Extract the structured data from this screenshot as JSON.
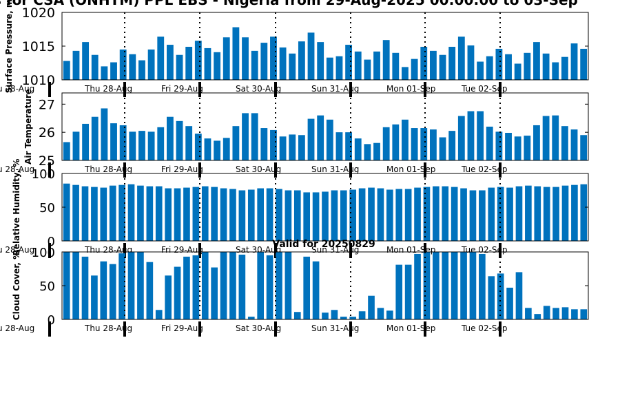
{
  "page": {
    "title": "s for CSA (ONHTM) PPL EBS  - Nigeria from 29-Aug-2025 00:00:00 to 03-Sep",
    "valid_label": "Valid for 20250829"
  },
  "colors": {
    "bar": "#0072BD",
    "axis": "#000000",
    "divider": "#000000"
  },
  "day_labels": [
    "u 28-Aug",
    "Thu 28-Aug",
    "Fri 29-Aug",
    "Sat 30-Aug",
    "Sun 31-Aug",
    "Mon 01-Sep",
    "Tue 02-Sep"
  ],
  "chart_data": [
    {
      "type": "bar",
      "ylabel": "Surface Pressure, m",
      "ylim": [
        1010,
        1020
      ],
      "yticks": [
        "1010",
        "1015",
        "1020"
      ],
      "ytick_values": [
        1010,
        1015,
        1020
      ],
      "values": [
        1012.8,
        1014.3,
        1015.6,
        1013.7,
        1012.0,
        1012.6,
        1014.5,
        1013.8,
        1012.9,
        1014.5,
        1016.4,
        1015.2,
        1013.7,
        1014.9,
        1015.8,
        1014.7,
        1014.1,
        1016.3,
        1017.8,
        1016.3,
        1014.3,
        1015.5,
        1016.4,
        1014.8,
        1013.9,
        1015.7,
        1017.0,
        1015.6,
        1013.3,
        1013.5,
        1015.2,
        1014.2,
        1013.0,
        1014.2,
        1015.9,
        1014.0,
        1011.9,
        1013.1,
        1014.9,
        1014.3,
        1013.7,
        1014.9,
        1016.4,
        1015.1,
        1012.7,
        1013.5,
        1014.6,
        1013.8,
        1012.4,
        1014.0,
        1015.6,
        1013.9,
        1012.6,
        1013.4,
        1015.4,
        1014.6
      ]
    },
    {
      "type": "bar",
      "ylabel": "Air Temperature",
      "ylim": [
        25,
        27.4
      ],
      "yticks": [
        "25",
        "26",
        "27"
      ],
      "ytick_values": [
        25,
        26,
        27
      ],
      "values": [
        25.65,
        26.02,
        26.3,
        26.55,
        26.85,
        26.32,
        26.25,
        26.02,
        26.05,
        26.02,
        26.18,
        26.55,
        26.4,
        26.22,
        25.95,
        25.78,
        25.7,
        25.8,
        26.22,
        26.68,
        26.68,
        26.15,
        26.08,
        25.85,
        25.92,
        25.9,
        26.48,
        26.6,
        26.45,
        26.0,
        26.0,
        25.78,
        25.58,
        25.62,
        26.18,
        26.28,
        26.45,
        26.15,
        26.15,
        26.1,
        25.82,
        26.05,
        26.58,
        26.75,
        26.75,
        26.2,
        26.02,
        25.98,
        25.85,
        25.88,
        26.25,
        26.58,
        26.6,
        26.22,
        26.1,
        25.9
      ]
    },
    {
      "type": "bar",
      "ylabel": "Relative Humidity, %",
      "ylim": [
        0,
        100
      ],
      "yticks": [
        "0",
        "50",
        "100"
      ],
      "ytick_values": [
        0,
        50,
        100
      ],
      "values": [
        85,
        83,
        81,
        80,
        79,
        82,
        83,
        84,
        82,
        81,
        81,
        78,
        78,
        79,
        80,
        81,
        80,
        78,
        77,
        75,
        76,
        78,
        78,
        77,
        75,
        75,
        72,
        72,
        73,
        75,
        75,
        76,
        78,
        79,
        78,
        76,
        77,
        77,
        79,
        80,
        81,
        81,
        80,
        78,
        75,
        75,
        79,
        80,
        79,
        81,
        82,
        81,
        80,
        80,
        82,
        83,
        84
      ]
    },
    {
      "type": "bar",
      "ylabel": "Cloud Cover, %",
      "ylim": [
        0,
        100
      ],
      "yticks": [
        "0",
        "50",
        "100"
      ],
      "ytick_values": [
        0,
        50,
        100
      ],
      "values": [
        100,
        100,
        93,
        65,
        86,
        82,
        98,
        100,
        100,
        85,
        14,
        65,
        78,
        93,
        95,
        100,
        77,
        100,
        100,
        96,
        4,
        100,
        95,
        100,
        100,
        11,
        93,
        86,
        10,
        14,
        4,
        4,
        12,
        35,
        17,
        13,
        81,
        81,
        97,
        100,
        100,
        100,
        100,
        100,
        100,
        97,
        64,
        68,
        47,
        70,
        17,
        8,
        20,
        17,
        18,
        15,
        15
      ]
    }
  ]
}
